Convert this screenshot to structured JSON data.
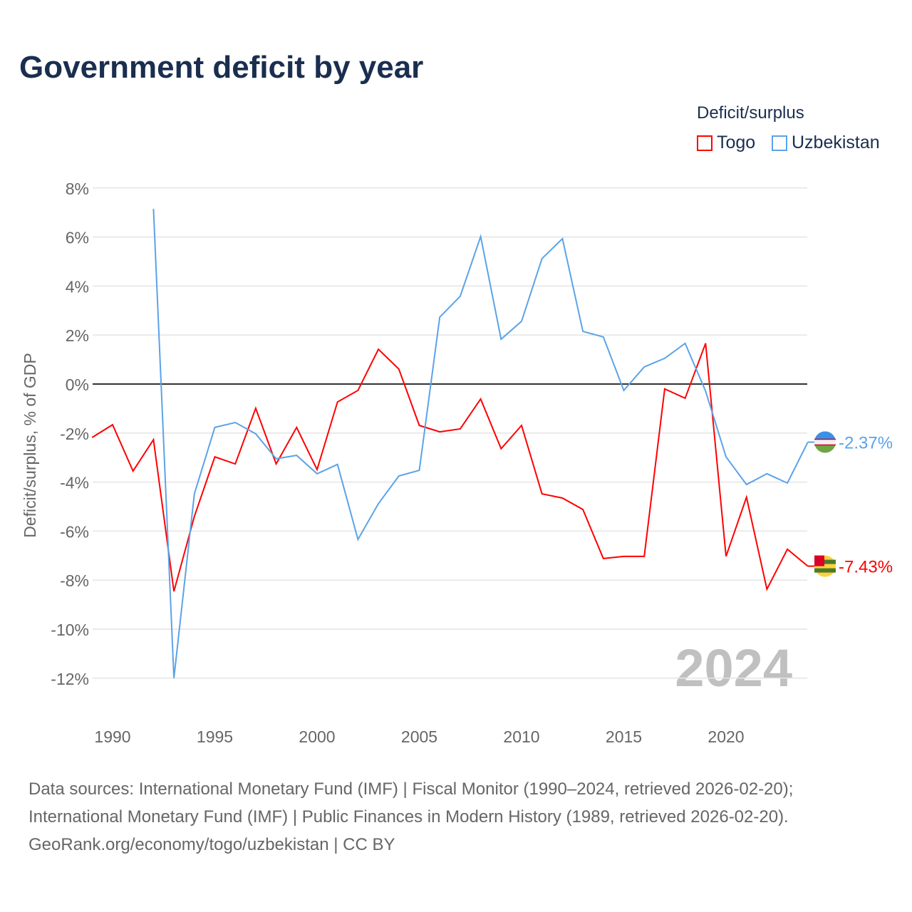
{
  "title": "Government deficit by year",
  "legend": {
    "title": "Deficit/surplus",
    "items": [
      "Togo",
      "Uzbekistan"
    ]
  },
  "year_label": "2024",
  "source": [
    "Data sources: International Monetary Fund (IMF) | Fiscal Monitor (1990–2024, retrieved 2026-02-20);",
    "International Monetary Fund (IMF) | Public Finances in Modern History (1989, retrieved 2026-02-20).",
    "GeoRank.org/economy/togo/uzbekistan | CC BY"
  ],
  "chart_data": {
    "type": "line",
    "title": "Government deficit by year",
    "ylabel": "Deficit/surplus, % of GDP",
    "xlabel": "",
    "ylim": [
      -12,
      8
    ],
    "xlim": [
      1989,
      2024
    ],
    "yticks": [
      "8%",
      "6%",
      "4%",
      "2%",
      "0%",
      "-2%",
      "-4%",
      "-6%",
      "-8%",
      "-10%",
      "-12%"
    ],
    "ytick_values": [
      8,
      6,
      4,
      2,
      0,
      -2,
      -4,
      -6,
      -8,
      -10,
      -12
    ],
    "xticks": [
      1990,
      1995,
      2000,
      2005,
      2010,
      2015,
      2020
    ],
    "grid": true,
    "legend_position": "top-right",
    "series": [
      {
        "name": "Togo",
        "color": "#ff0000",
        "end_label": "-7.43%",
        "start": 1989,
        "values": [
          -2.18,
          -1.66,
          -3.55,
          -2.27,
          -8.46,
          -5.4,
          -2.97,
          -3.26,
          -0.99,
          -3.26,
          -1.77,
          -3.49,
          -0.73,
          -0.26,
          1.42,
          0.61,
          -1.69,
          -1.95,
          -1.83,
          -0.61,
          -2.64,
          -1.69,
          -4.48,
          -4.65,
          -5.12,
          -7.12,
          -7.03,
          -7.03,
          -0.2,
          -0.58,
          1.66,
          -7.03,
          -4.62,
          -8.37,
          -6.74,
          -7.43
        ]
      },
      {
        "name": "Uzbekistan",
        "color": "#5ba3e8",
        "end_label": "-2.37%",
        "start": 1992,
        "values": [
          7.15,
          -12.0,
          -4.48,
          -1.77,
          -1.57,
          -2.03,
          -3.05,
          -2.91,
          -3.66,
          -3.28,
          -6.34,
          -4.88,
          -3.75,
          -3.52,
          2.73,
          3.58,
          6.02,
          1.83,
          2.56,
          5.12,
          5.93,
          2.15,
          1.92,
          -0.26,
          0.7,
          1.05,
          1.66,
          -0.29,
          -2.97,
          -4.1,
          -3.66,
          -4.04,
          -2.37
        ]
      }
    ]
  }
}
